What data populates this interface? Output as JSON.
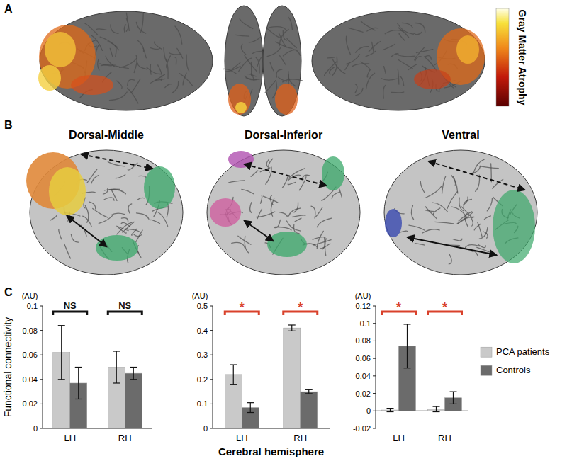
{
  "chart_data": [
    {
      "type": "bar",
      "y_label": "Functional connectivity",
      "categories": [
        "LH",
        "RH"
      ],
      "series": [
        {
          "color": "#c9c9c9",
          "values": [
            0.062,
            0.05
          ],
          "errors": [
            0.022,
            0.013
          ]
        },
        {
          "color": "#6b6b6b",
          "values": [
            0.037,
            0.045
          ],
          "errors": [
            0.013,
            0.005
          ]
        }
      ],
      "ylim": [
        0,
        0.1
      ],
      "yticks": [
        0,
        0.02,
        0.04,
        0.06,
        0.08,
        0.1
      ],
      "annotations": [
        {
          "text": "(AU)"
        },
        {
          "text": "NS",
          "category": 0
        },
        {
          "text": "NS",
          "category": 1
        }
      ]
    },
    {
      "type": "bar",
      "x_label": "Cerebral hemisphere",
      "categories": [
        "LH",
        "RH"
      ],
      "series": [
        {
          "color": "#c9c9c9",
          "values": [
            0.22,
            0.41
          ],
          "errors": [
            0.04,
            0.012
          ]
        },
        {
          "color": "#6b6b6b",
          "values": [
            0.085,
            0.15
          ],
          "errors": [
            0.02,
            0.008
          ]
        }
      ],
      "ylim": [
        0,
        0.5
      ],
      "yticks": [
        0,
        0.1,
        0.2,
        0.3,
        0.4,
        0.5
      ],
      "annotations": [
        {
          "text": "(AU)"
        },
        {
          "text": "*",
          "category": 0
        },
        {
          "text": "*",
          "category": 1
        }
      ]
    },
    {
      "type": "bar",
      "categories": [
        "LH",
        "RH"
      ],
      "legend": "right",
      "series": [
        {
          "name": "PCA patients",
          "color": "#c9c9c9",
          "values": [
            0.001,
            0.002
          ],
          "errors": [
            0.002,
            0.003
          ]
        },
        {
          "name": "Controls",
          "color": "#6b6b6b",
          "values": [
            0.074,
            0.015
          ],
          "errors": [
            0.025,
            0.007
          ]
        }
      ],
      "ylim": [
        -0.02,
        0.12
      ],
      "yticks": [
        -0.02,
        0,
        0.02,
        0.04,
        0.06,
        0.08,
        0.1,
        0.12
      ],
      "annotations": [
        {
          "text": "(AU)"
        },
        {
          "text": "*",
          "category": 0
        },
        {
          "text": "*",
          "category": 1
        }
      ]
    }
  ],
  "figure": {
    "panel_labels": [
      "A",
      "B",
      "C"
    ],
    "colorbar_label": "Gray Matter Atrophy",
    "network_titles": [
      "Dorsal-Middle",
      "Dorsal-Inferior",
      "Ventral"
    ]
  }
}
